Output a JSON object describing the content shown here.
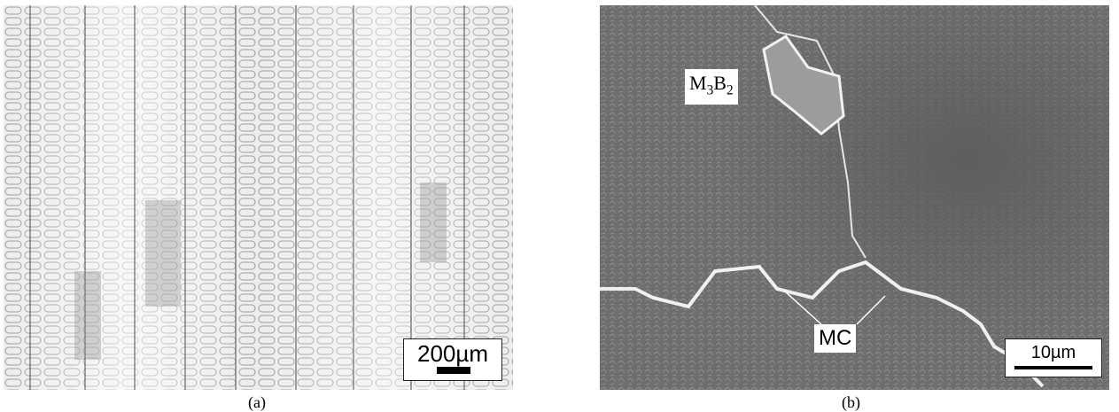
{
  "panel_a": {
    "scale_bar_label": "200µm",
    "caption": "(a)"
  },
  "panel_b": {
    "scale_bar_label": "10µm",
    "phase_labels": {
      "m3b2": "M3B2",
      "mc": "MC"
    },
    "caption": "(b)"
  },
  "colors": {
    "optical_background": "#e9e9e9",
    "sem_background": "#6f6f6f",
    "label_box": "#ffffff"
  }
}
